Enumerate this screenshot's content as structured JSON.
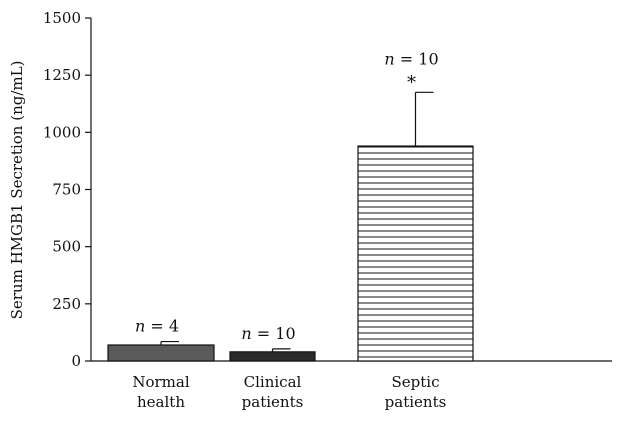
{
  "chart_data": {
    "type": "bar",
    "ylabel": "Serum HMGB1 Secretion (ng/mL)",
    "ylim": [
      0,
      1500
    ],
    "yticks": [
      0,
      250,
      500,
      750,
      1000,
      1250,
      1500
    ],
    "ytick_labels": [
      "0",
      "250",
      "500",
      "750",
      "1000",
      "1250",
      "1500"
    ],
    "categories": [
      {
        "lines": [
          "Normal",
          "health"
        ]
      },
      {
        "lines": [
          "Clinical",
          "patients"
        ]
      },
      {
        "lines": [
          "Septic",
          "patients"
        ]
      }
    ],
    "values": [
      70,
      40,
      940
    ],
    "errors": [
      15,
      13,
      235
    ],
    "fills": [
      "#5a5a5a",
      "#2b2b2b",
      "hatch"
    ],
    "annotations": [
      {
        "n_symbol": "n",
        "rest": " = 4",
        "star": ""
      },
      {
        "n_symbol": "n",
        "rest": " = 10",
        "star": ""
      },
      {
        "n_symbol": "n",
        "rest": " = 10",
        "star": "*"
      }
    ],
    "grid": false,
    "legend": "none"
  }
}
